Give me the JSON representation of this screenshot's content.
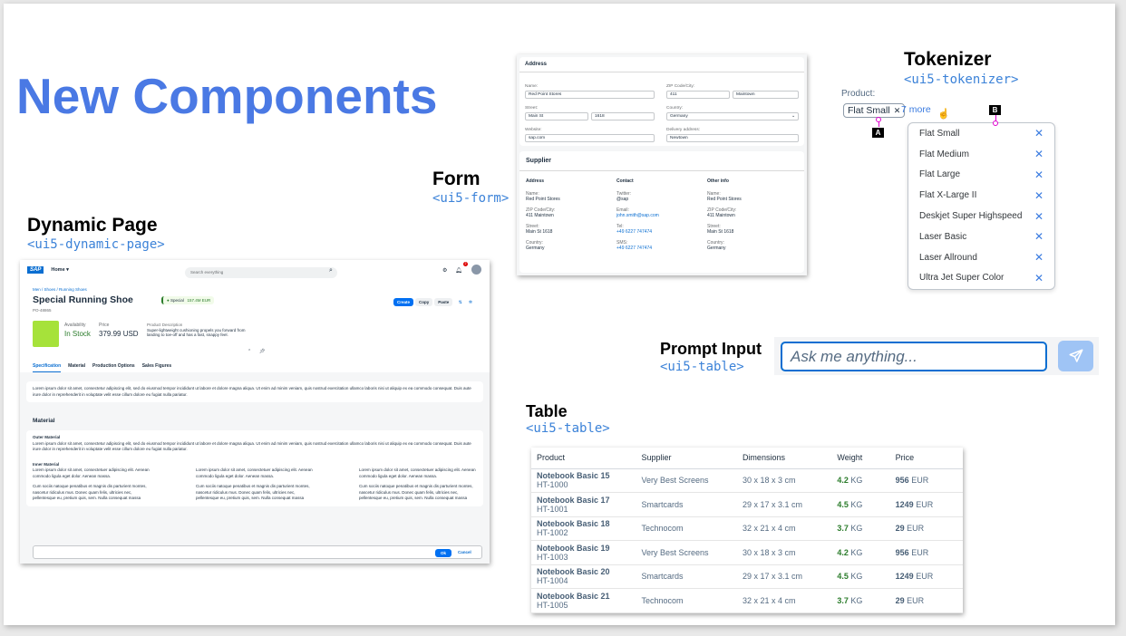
{
  "slide": {
    "title": "New Components"
  },
  "dynamic_page": {
    "label": "Dynamic Page",
    "tag": "<ui5-dynamic-page>",
    "shell": {
      "logo": "SAP",
      "home": "Home",
      "search_placeholder": "Search everything",
      "notification_count": "2"
    },
    "breadcrumb": "Men / Shoes / Running Shoes",
    "title": "Special Running Shoe",
    "status": "Special",
    "amount": "157.4M EUR",
    "id": "PO-48865",
    "actions": [
      "Create",
      "Copy",
      "Paste"
    ],
    "kpis": {
      "availability_label": "Availability",
      "availability": "In Stock",
      "price_label": "Price",
      "price": "379.99 USD",
      "desc_label": "Product Description",
      "desc": "Super-lightweight cushioning propels you forward from landing to toe-off and has a fast, snappy feel."
    },
    "tabs": [
      "Specification",
      "Material",
      "Production Options",
      "Sales Figures"
    ],
    "lorem": "Lorem ipsum dolor sit amet, consectetur adipiscing elit, sed do eiusmod tempor incididunt ut labore et dolore magna aliqua. Ut enim ad minim veniam, quis nostrud exercitation ullamco laboris nisi ut aliquip ex ea commodo consequat. Duis aute irure dolor in reprehenderit in voluptate velit esse cillum dolore eu fugiat nulla pariatur.",
    "material_title": "Material",
    "outer_title": "Outer Material",
    "inner_title": "Inner Material",
    "inner_p1": "Lorem ipsum dolor sit amet, consectetuer adipiscing elit. Aenean commodo ligula eget dolor. Aenean massa.",
    "inner_p2": "Cum sociis natoque penatibus et magnis dis parturient montes, nascetur ridiculus mus. Donec quam felis, ultricies nec, pellentesque eu, pretium quis, sem. Nulla consequat massa",
    "ok": "Ok",
    "cancel": "Cancel"
  },
  "form": {
    "label": "Form",
    "tag": "<ui5-form>",
    "address": {
      "title": "Address",
      "name_label": "Name:",
      "name": "Red Point Stores",
      "zip_label": "ZIP Code/City:",
      "zip": "411",
      "city": "Maintown",
      "street_label": "Street:",
      "street": "Main St",
      "number": "1618",
      "country_label": "Country:",
      "country": "Germany",
      "website_label": "Website:",
      "website": "sap.com",
      "delivery_label": "Delivery address:",
      "delivery": "Newtown"
    },
    "supplier": {
      "title": "Supplier",
      "columns": [
        {
          "head": "Address",
          "fields": [
            {
              "l": "Name:",
              "v": "Red Point Stores"
            },
            {
              "l": "ZIP Code/City:",
              "v": "411 Maintown"
            },
            {
              "l": "Street:",
              "v": "Main St 1618"
            },
            {
              "l": "Country:",
              "v": "Germany"
            }
          ]
        },
        {
          "head": "Contact",
          "fields": [
            {
              "l": "Twitter:",
              "v": "@sap"
            },
            {
              "l": "Email:",
              "v": "john.smith@sap.com",
              "link": true
            },
            {
              "l": "Tel:",
              "v": "+49 6227 747474",
              "link": true
            },
            {
              "l": "SMS:",
              "v": "+49 6227 747474",
              "link": true
            }
          ]
        },
        {
          "head": "Other info",
          "fields": [
            {
              "l": "Name:",
              "v": "Red Point Stores"
            },
            {
              "l": "ZIP Code/City:",
              "v": "411 Maintown"
            },
            {
              "l": "Street:",
              "v": "Main St 1618"
            },
            {
              "l": "Country:",
              "v": "Germany"
            }
          ]
        }
      ]
    }
  },
  "tokenizer": {
    "label": "Tokenizer",
    "tag": "<ui5-tokenizer>",
    "field_label": "Product:",
    "token": "Flat Small",
    "more": "7 more",
    "marker_a": "A",
    "marker_b": "B",
    "items": [
      "Flat Small",
      "Flat Medium",
      "Flat Large",
      "Flat X-Large II",
      "Deskjet Super Highspeed",
      "Laser Basic",
      "Laser Allround",
      "Ultra Jet Super Color"
    ]
  },
  "prompt": {
    "label": "Prompt Input",
    "tag": "<ui5-table>",
    "placeholder": "Ask me anything..."
  },
  "table": {
    "label": "Table",
    "tag": "<ui5-table>",
    "headers": [
      "Product",
      "Supplier",
      "Dimensions",
      "Weight",
      "Price"
    ],
    "rows": [
      {
        "name": "Notebook Basic 15",
        "id": "HT-1000",
        "supplier": "Very Best Screens",
        "dim": "30 x 18 x 3 cm",
        "w": "4.2",
        "wu": "KG",
        "p": "956",
        "pu": "EUR"
      },
      {
        "name": "Notebook Basic 17",
        "id": "HT-1001",
        "supplier": "Smartcards",
        "dim": "29 x 17 x 3.1 cm",
        "w": "4.5",
        "wu": "KG",
        "p": "1249",
        "pu": "EUR"
      },
      {
        "name": "Notebook Basic 18",
        "id": "HT-1002",
        "supplier": "Technocom",
        "dim": "32 x 21 x 4 cm",
        "w": "3.7",
        "wu": "KG",
        "p": "29",
        "pu": "EUR"
      },
      {
        "name": "Notebook Basic 19",
        "id": "HT-1003",
        "supplier": "Very Best Screens",
        "dim": "30 x 18 x 3 cm",
        "w": "4.2",
        "wu": "KG",
        "p": "956",
        "pu": "EUR"
      },
      {
        "name": "Notebook Basic 20",
        "id": "HT-1004",
        "supplier": "Smartcards",
        "dim": "29 x 17 x 3.1 cm",
        "w": "4.5",
        "wu": "KG",
        "p": "1249",
        "pu": "EUR"
      },
      {
        "name": "Notebook Basic 21",
        "id": "HT-1005",
        "supplier": "Technocom",
        "dim": "32 x 21 x 4 cm",
        "w": "3.7",
        "wu": "KG",
        "p": "29",
        "pu": "EUR"
      }
    ]
  },
  "colors": {
    "title": "#4a79e4",
    "tag": "#3b82d8",
    "accent": "#0a6ed1",
    "positive": "#2b7c2b",
    "marker": "#e000d0"
  }
}
